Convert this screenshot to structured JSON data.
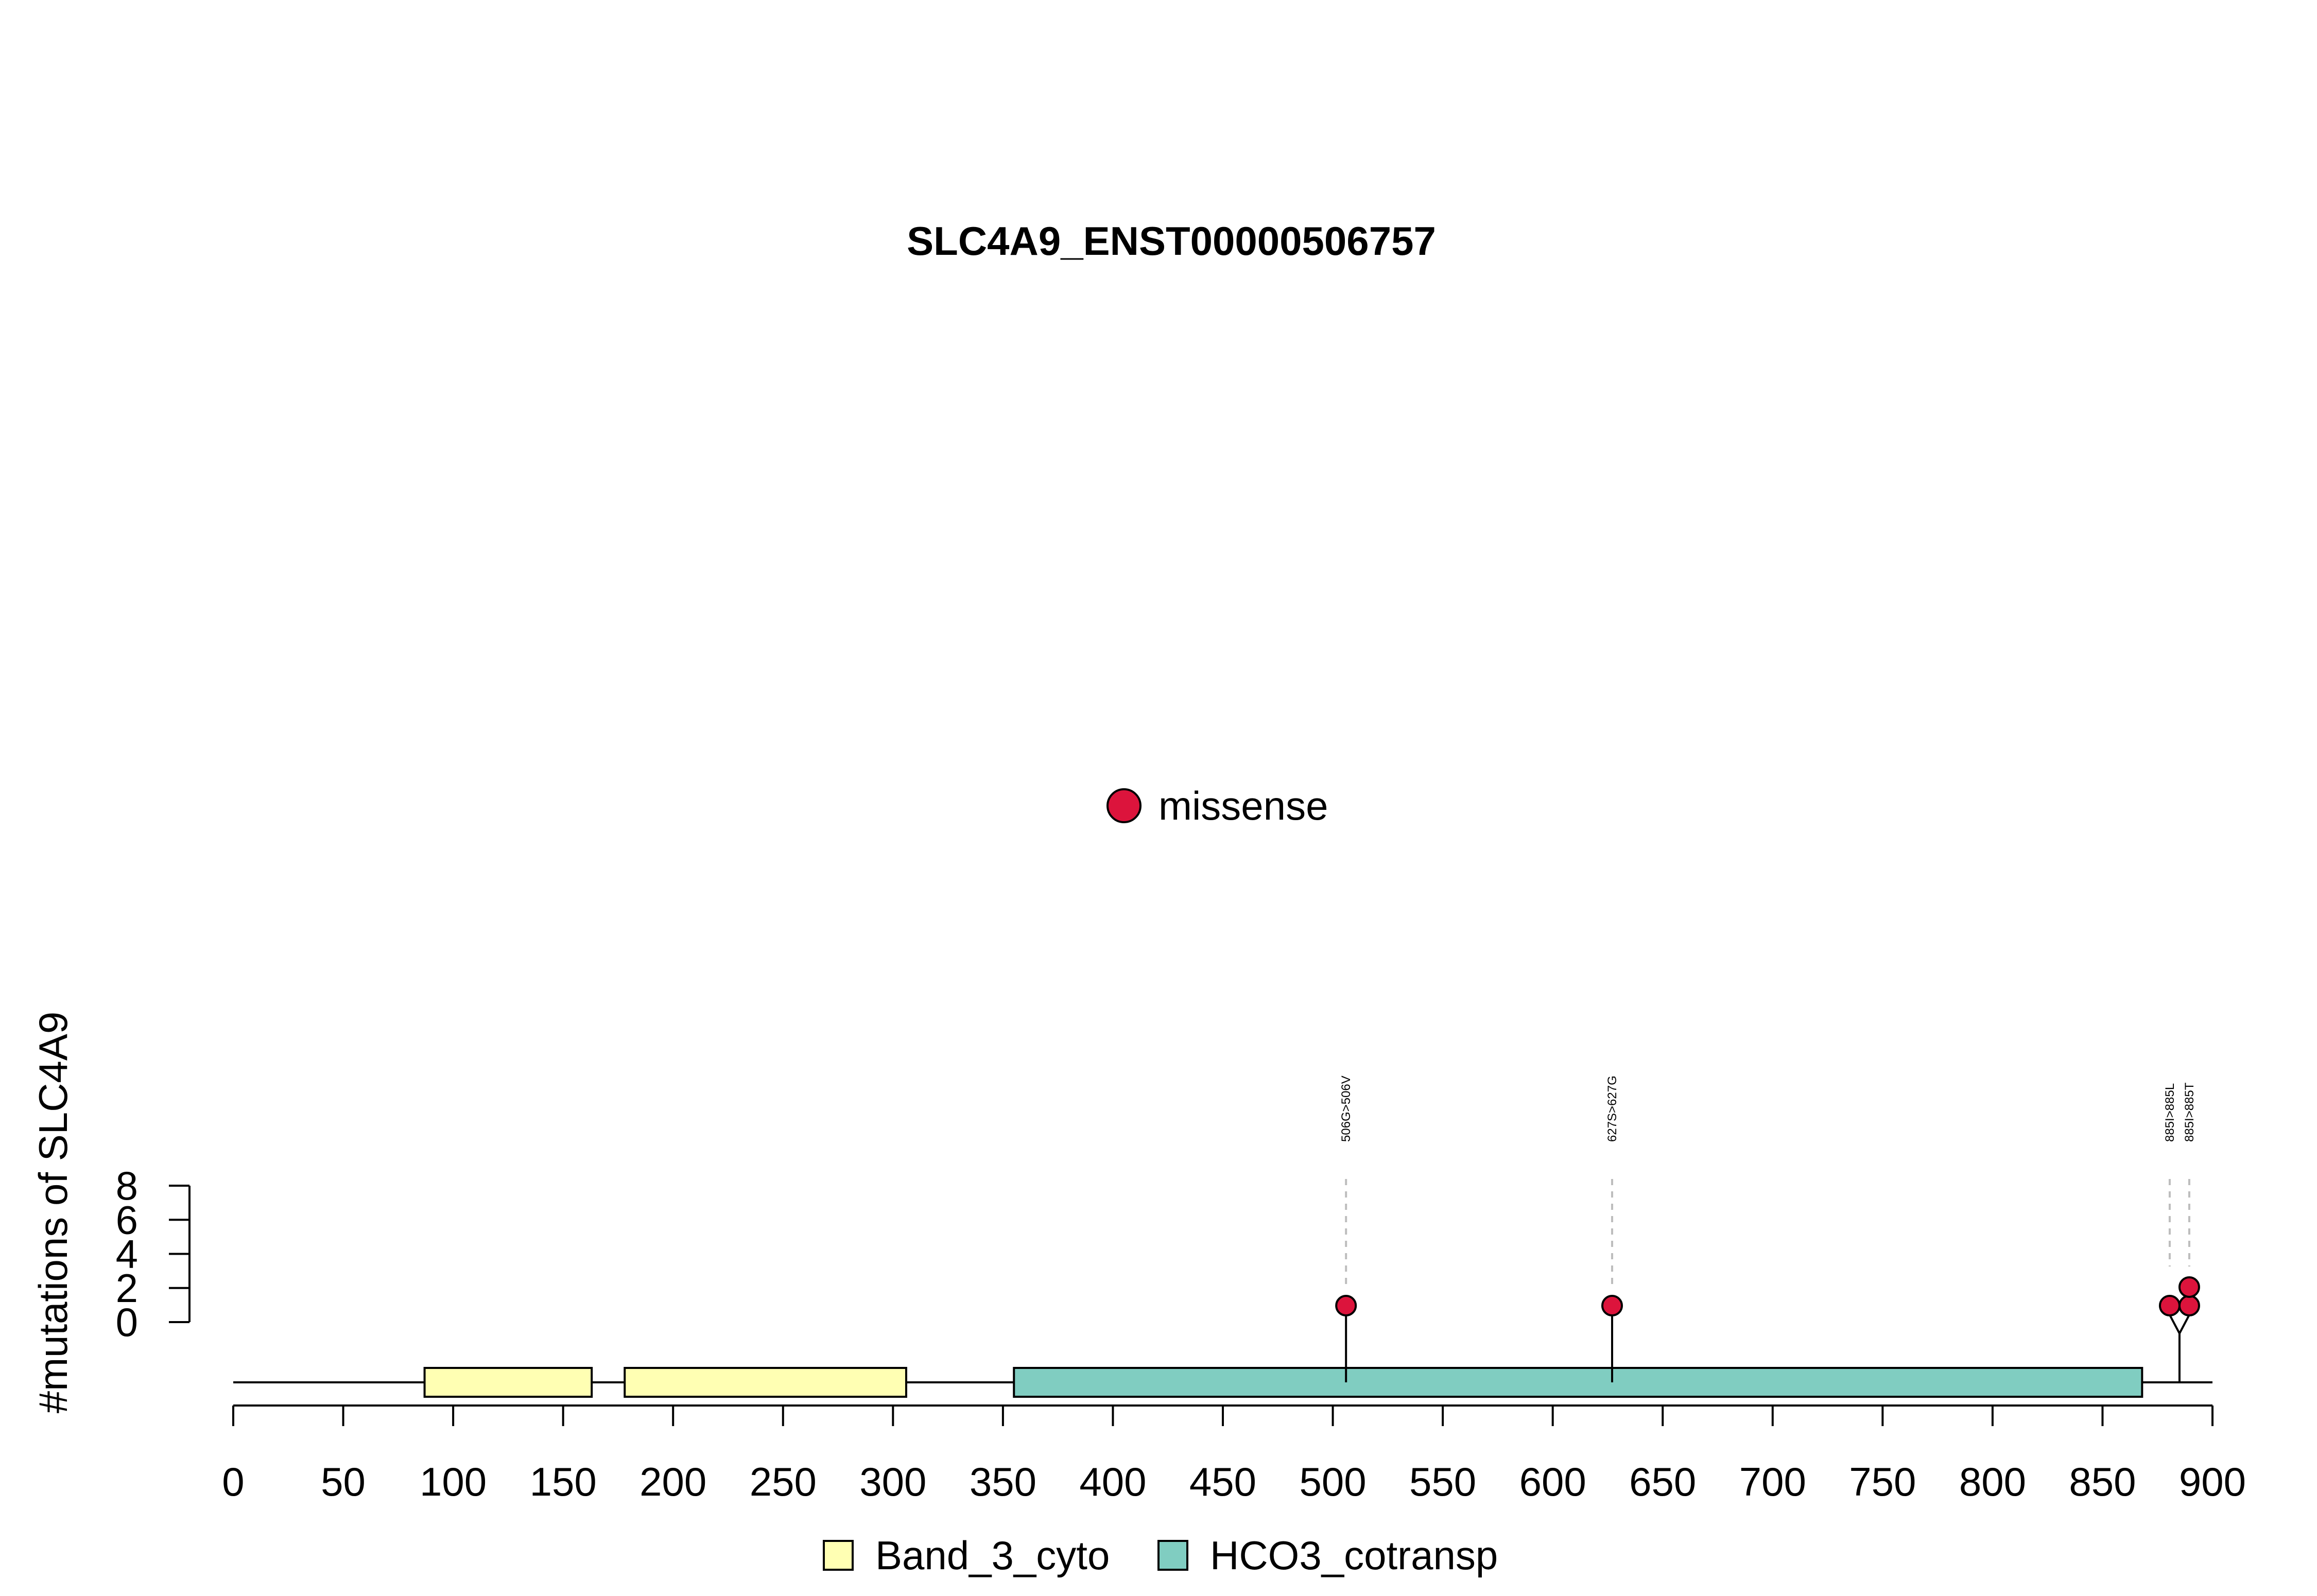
{
  "chart_data": {
    "type": "lollipop",
    "title": "SLC4A9_ENST00000506757",
    "ylabel": "#mutations of SLC4A9",
    "xlim": [
      0,
      900
    ],
    "x_ticks": [
      0,
      50,
      100,
      150,
      200,
      250,
      300,
      350,
      400,
      450,
      500,
      550,
      600,
      650,
      700,
      750,
      800,
      850,
      900
    ],
    "y_ticks": [
      0,
      2,
      4,
      6,
      8
    ],
    "ylim": [
      0,
      8
    ],
    "protein_length": 900,
    "domains": [
      {
        "name": "Band_3_cyto",
        "start": 87,
        "end": 163,
        "color": "#FFFFB3"
      },
      {
        "name": "Band_3_cyto",
        "start": 178,
        "end": 306,
        "color": "#FFFFB3"
      },
      {
        "name": "HCO3_cotransp",
        "start": 355,
        "end": 868,
        "color": "#80CDC1"
      }
    ],
    "mutations": [
      {
        "position": 506,
        "label": "506G>506V",
        "count": 1,
        "type": "missense"
      },
      {
        "position": 627,
        "label": "627S>627G",
        "count": 1,
        "type": "missense"
      },
      {
        "position": 885,
        "label": "885I>885L",
        "count": 1,
        "type": "missense"
      },
      {
        "position": 885,
        "label": "885I>885T",
        "count": 2,
        "type": "missense"
      }
    ],
    "mutation_legend": [
      {
        "name": "missense",
        "color": "#DC143C"
      }
    ],
    "domain_legend": [
      {
        "name": "Band_3_cyto",
        "color": "#FFFFB3"
      },
      {
        "name": "HCO3_cotransp",
        "color": "#80CDC1"
      }
    ]
  }
}
